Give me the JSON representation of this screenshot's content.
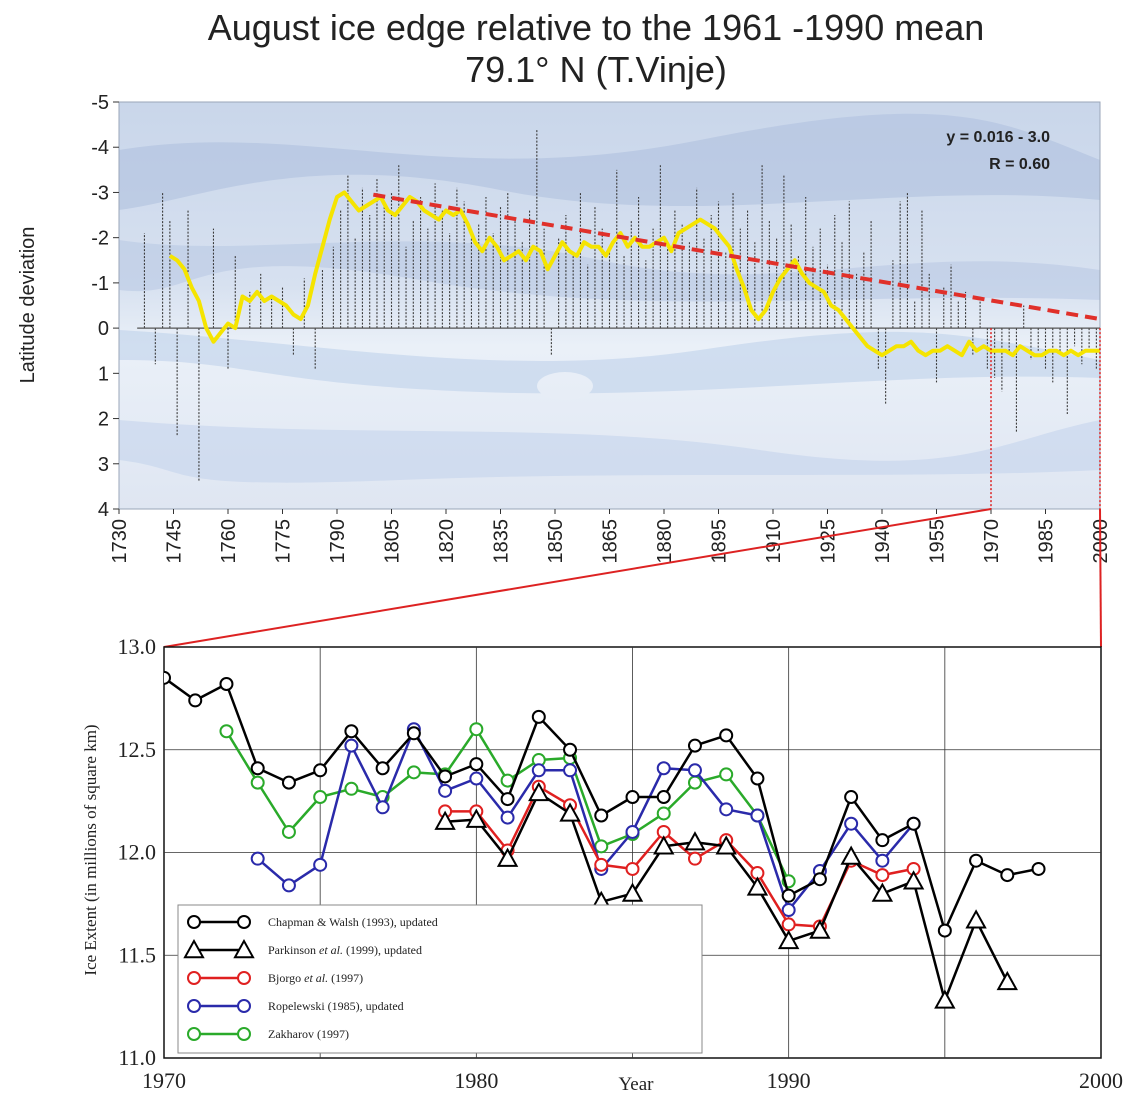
{
  "chart_data": [
    {
      "type": "bar",
      "title_line1": "August ice edge relative to the 1961 -1990 mean",
      "title_line2": "79.1° N (T.Vinje)",
      "ylabel": "Latitude deviation",
      "xlabel": "",
      "ylim": [
        4,
        -5
      ],
      "yticks": [
        -5,
        -4,
        -3,
        -2,
        -1,
        0,
        1,
        2,
        3,
        4
      ],
      "xlim": [
        1730,
        2000
      ],
      "xticks": [
        1730,
        1745,
        1760,
        1775,
        1790,
        1805,
        1820,
        1835,
        1850,
        1865,
        1880,
        1895,
        1910,
        1925,
        1940,
        1955,
        1970,
        1985,
        2000
      ],
      "annotation_eq": "y = 0.016 - 3.0",
      "annotation_r": "R = 0.60",
      "annual_bars": {
        "x": [
          1737,
          1740,
          1742,
          1744,
          1746,
          1749,
          1752,
          1756,
          1760,
          1762,
          1766,
          1769,
          1772,
          1775,
          1778,
          1781,
          1784,
          1786,
          1789,
          1791,
          1793,
          1795,
          1797,
          1799,
          1801,
          1803,
          1805,
          1807,
          1809,
          1811,
          1813,
          1815,
          1817,
          1819,
          1821,
          1823,
          1825,
          1827,
          1829,
          1831,
          1833,
          1835,
          1837,
          1839,
          1841,
          1843,
          1845,
          1847,
          1849,
          1851,
          1853,
          1855,
          1857,
          1859,
          1861,
          1863,
          1865,
          1867,
          1869,
          1871,
          1873,
          1875,
          1877,
          1879,
          1881,
          1883,
          1885,
          1887,
          1889,
          1891,
          1893,
          1895,
          1897,
          1899,
          1901,
          1903,
          1905,
          1907,
          1909,
          1911,
          1913,
          1915,
          1917,
          1919,
          1921,
          1923,
          1925,
          1927,
          1929,
          1931,
          1933,
          1935,
          1937,
          1939,
          1941,
          1943,
          1945,
          1947,
          1949,
          1951,
          1953,
          1955,
          1957,
          1959,
          1961,
          1963,
          1965,
          1967,
          1969,
          1971,
          1973,
          1975,
          1977,
          1979,
          1981,
          1983,
          1985,
          1987,
          1989,
          1991,
          1993,
          1995,
          1997,
          1999
        ],
        "values": [
          -2.1,
          0.8,
          -3.0,
          -2.4,
          2.4,
          -2.6,
          3.4,
          -2.2,
          0.9,
          -1.6,
          -0.8,
          -1.2,
          -0.7,
          -0.9,
          0.6,
          -1.1,
          0.9,
          -1.3,
          -1.8,
          -2.6,
          -3.4,
          -2.0,
          -3.1,
          -2.5,
          -3.3,
          -2.7,
          -3.0,
          -3.6,
          -1.8,
          -2.4,
          -2.9,
          -2.2,
          -3.2,
          -2.6,
          -2.1,
          -3.1,
          -2.8,
          -2.0,
          -2.3,
          -2.9,
          -2.1,
          -2.7,
          -3.0,
          -2.4,
          -1.9,
          -2.6,
          -4.4,
          -2.2,
          0.6,
          -2.0,
          -2.5,
          -1.6,
          -3.0,
          -1.4,
          -2.7,
          -2.2,
          -1.8,
          -3.5,
          -1.6,
          -2.4,
          -2.9,
          -1.5,
          -2.2,
          -3.6,
          -1.8,
          -2.6,
          -2.3,
          -1.9,
          -3.1,
          -2.0,
          -2.5,
          -2.8,
          -1.7,
          -3.0,
          -2.2,
          -2.6,
          -1.9,
          -3.6,
          -2.4,
          -2.0,
          -3.4,
          -2.3,
          -1.6,
          -2.9,
          -1.8,
          -2.2,
          -1.4,
          -2.5,
          -1.9,
          -2.8,
          -1.2,
          -1.7,
          -2.4,
          0.9,
          1.7,
          -1.5,
          -2.8,
          -3.0,
          -0.6,
          -2.6,
          -1.2,
          1.2,
          -0.9,
          -1.4,
          -0.6,
          -0.8,
          0.6,
          -0.7,
          0.9,
          1.1,
          1.4,
          0.6,
          2.3,
          -0.5,
          0.7,
          0.5,
          0.9,
          1.2,
          0.6,
          1.9,
          0.4,
          0.8,
          0.5,
          0.9
        ]
      },
      "series": [
        {
          "name": "",
          "x": [
            1744,
            1746,
            1748,
            1750,
            1752,
            1754,
            1756,
            1758,
            1760,
            1762,
            1764,
            1766,
            1768,
            1770,
            1772,
            1774,
            1776,
            1778,
            1780,
            1782,
            1784,
            1786,
            1788,
            1790,
            1792,
            1794,
            1796,
            1798,
            1800,
            1802,
            1804,
            1806,
            1808,
            1810,
            1812,
            1814,
            1816,
            1818,
            1820,
            1822,
            1824,
            1826,
            1828,
            1830,
            1832,
            1834,
            1836,
            1838,
            1840,
            1842,
            1844,
            1846,
            1848,
            1850,
            1852,
            1854,
            1856,
            1858,
            1860,
            1862,
            1864,
            1866,
            1868,
            1870,
            1872,
            1874,
            1876,
            1878,
            1880,
            1882,
            1884,
            1886,
            1888,
            1890,
            1892,
            1894,
            1896,
            1898,
            1900,
            1902,
            1904,
            1906,
            1908,
            1910,
            1912,
            1914,
            1916,
            1918,
            1920,
            1922,
            1924,
            1926,
            1928,
            1930,
            1932,
            1934,
            1936,
            1938,
            1940,
            1942,
            1944,
            1946,
            1948,
            1950,
            1952,
            1954,
            1956,
            1958,
            1960,
            1962,
            1964,
            1966,
            1968,
            1970,
            1972,
            1974,
            1976,
            1978,
            1980,
            1982,
            1984,
            1986,
            1988,
            1990,
            1992,
            1994,
            1996,
            1998,
            2000
          ],
          "values": [
            -1.6,
            -1.5,
            -1.3,
            -0.9,
            -0.6,
            0.0,
            0.3,
            0.1,
            -0.1,
            0.0,
            -0.7,
            -0.6,
            -0.8,
            -0.6,
            -0.7,
            -0.6,
            -0.5,
            -0.3,
            -0.2,
            -0.5,
            -1.2,
            -1.8,
            -2.4,
            -2.9,
            -3.0,
            -2.8,
            -2.6,
            -2.7,
            -2.8,
            -2.9,
            -2.6,
            -2.5,
            -2.7,
            -2.9,
            -2.8,
            -2.6,
            -2.5,
            -2.4,
            -2.6,
            -2.5,
            -2.6,
            -2.3,
            -1.9,
            -1.7,
            -2.0,
            -1.8,
            -1.5,
            -1.6,
            -1.7,
            -1.5,
            -1.8,
            -1.7,
            -1.3,
            -1.6,
            -1.9,
            -1.7,
            -1.6,
            -1.9,
            -1.8,
            -1.8,
            -1.6,
            -1.9,
            -2.1,
            -1.8,
            -2.0,
            -1.8,
            -1.8,
            -1.9,
            -2.0,
            -1.7,
            -2.1,
            -2.2,
            -2.3,
            -2.4,
            -2.3,
            -2.2,
            -2.0,
            -1.8,
            -1.3,
            -0.9,
            -0.4,
            -0.2,
            -0.4,
            -0.8,
            -1.1,
            -1.3,
            -1.5,
            -1.2,
            -1.0,
            -0.9,
            -0.8,
            -0.5,
            -0.4,
            -0.2,
            0.0,
            0.2,
            0.4,
            0.5,
            0.6,
            0.5,
            0.4,
            0.4,
            0.3,
            0.5,
            0.6,
            0.5,
            0.5,
            0.4,
            0.5,
            0.6,
            0.3,
            0.5,
            0.4,
            0.5,
            0.5,
            0.5,
            0.6,
            0.4,
            0.5,
            0.6,
            0.6,
            0.5,
            0.5,
            0.6,
            0.5,
            0.6,
            0.5,
            0.5,
            0.5
          ],
          "color": "#f5e400"
        },
        {
          "name": "",
          "type": "trend",
          "x": [
            1800,
            2000
          ],
          "values": [
            -2.95,
            -0.2
          ],
          "color": "#e0302a"
        }
      ]
    },
    {
      "type": "line",
      "title": "",
      "xlabel": "Year",
      "ylabel": "Ice Extent (in millions of square km)",
      "xlim": [
        1970,
        2000
      ],
      "ylim": [
        11.0,
        13.0
      ],
      "xticks": [
        1970,
        1980,
        1990,
        2000
      ],
      "yticks": [
        11.0,
        11.5,
        12.0,
        12.5,
        13.0
      ],
      "ytick_labels": [
        "11.0",
        "11.5",
        "12.0",
        "12.5",
        "13.0"
      ],
      "grid": true,
      "legend_position": "bottom-left",
      "series": [
        {
          "name": "Chapman & Walsh (1993), updated",
          "color": "#000000",
          "marker": "circle",
          "x": [
            1970,
            1971,
            1972,
            1973,
            1974,
            1975,
            1976,
            1977,
            1978,
            1979,
            1980,
            1981,
            1982,
            1983,
            1984,
            1985,
            1986,
            1987,
            1988,
            1989,
            1990,
            1991,
            1992,
            1993,
            1994,
            1995,
            1996,
            1997,
            1998
          ],
          "values": [
            12.85,
            12.74,
            12.82,
            12.41,
            12.34,
            12.4,
            12.59,
            12.41,
            12.58,
            12.37,
            12.43,
            12.26,
            12.66,
            12.5,
            12.18,
            12.27,
            12.27,
            12.52,
            12.57,
            12.36,
            11.79,
            11.87,
            12.27,
            12.06,
            12.14,
            11.62,
            11.96,
            11.89,
            11.92
          ]
        },
        {
          "name": "Parkinson et al. (1999), updated",
          "name_prefix": "Parkinson ",
          "name_italic": "et al.",
          "name_suffix": " (1999), updated",
          "color": "#000000",
          "marker": "triangle",
          "x": [
            1979,
            1980,
            1981,
            1982,
            1983,
            1984,
            1985,
            1986,
            1987,
            1988,
            1989,
            1990,
            1991,
            1992,
            1993,
            1994,
            1995,
            1996,
            1997
          ],
          "values": [
            12.15,
            12.16,
            11.97,
            12.29,
            12.19,
            11.76,
            11.8,
            12.03,
            12.05,
            12.03,
            11.83,
            11.57,
            11.62,
            11.98,
            11.8,
            11.86,
            11.28,
            11.67,
            11.37
          ]
        },
        {
          "name": "Bjorgo et al. (1997)",
          "name_prefix": "Bjorgo ",
          "name_italic": "et al.",
          "name_suffix": " (1997)",
          "color": "#e02020",
          "marker": "circle",
          "x": [
            1979,
            1980,
            1981,
            1982,
            1983,
            1984,
            1985,
            1986,
            1987,
            1988,
            1989,
            1990,
            1991,
            1992,
            1993,
            1994
          ],
          "values": [
            12.2,
            12.2,
            12.01,
            12.32,
            12.23,
            11.94,
            11.92,
            12.1,
            11.97,
            12.06,
            11.9,
            11.65,
            11.64,
            11.96,
            11.89,
            11.92
          ]
        },
        {
          "name": "Ropelewski (1985), updated",
          "color": "#2a2aaa",
          "marker": "circle",
          "x": [
            1973,
            1974,
            1975,
            1976,
            1977,
            1978,
            1979,
            1980,
            1981,
            1982,
            1983,
            1984,
            1985,
            1986,
            1987,
            1988,
            1989,
            1990,
            1991,
            1992,
            1993,
            1994
          ],
          "values": [
            11.97,
            11.84,
            11.94,
            12.52,
            12.22,
            12.6,
            12.3,
            12.36,
            12.17,
            12.4,
            12.4,
            11.92,
            12.1,
            12.41,
            12.4,
            12.21,
            12.18,
            11.72,
            11.91,
            12.14,
            11.96,
            12.14
          ]
        },
        {
          "name": "Zakharov (1997)",
          "color": "#2aaa2a",
          "marker": "circle",
          "x": [
            1972,
            1973,
            1974,
            1975,
            1976,
            1977,
            1978,
            1979,
            1980,
            1981,
            1982,
            1983,
            1984,
            1985,
            1986,
            1987,
            1988,
            1989,
            1990
          ],
          "values": [
            12.59,
            12.34,
            12.1,
            12.27,
            12.31,
            12.27,
            12.39,
            12.38,
            12.6,
            12.35,
            12.45,
            12.46,
            12.03,
            12.09,
            12.19,
            12.34,
            12.38,
            12.18,
            11.86
          ]
        }
      ]
    }
  ]
}
